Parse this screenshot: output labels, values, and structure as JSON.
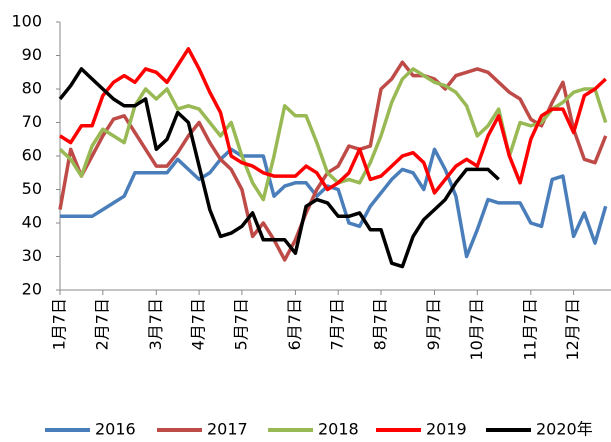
{
  "chart_data": {
    "type": "line",
    "categories": [
      "1月7日",
      null,
      null,
      null,
      "2月7日",
      null,
      null,
      null,
      null,
      "3月7日",
      null,
      null,
      null,
      "4月7日",
      null,
      null,
      null,
      "5月7日",
      null,
      null,
      null,
      null,
      "6月7日",
      null,
      null,
      null,
      "7月7日",
      null,
      null,
      null,
      "8月7日",
      null,
      null,
      null,
      null,
      "9月7日",
      null,
      null,
      null,
      "10月7日",
      null,
      null,
      null,
      null,
      "11月7日",
      null,
      null,
      null,
      "12月7日",
      null,
      null,
      null
    ],
    "series": [
      {
        "name": "2016",
        "color": "#4a7ebb",
        "values": [
          42,
          42,
          42,
          42,
          44,
          46,
          48,
          55,
          55,
          55,
          55,
          59,
          56,
          53,
          55,
          59,
          62,
          60,
          60,
          60,
          48,
          51,
          52,
          52,
          48,
          51,
          50,
          40,
          39,
          45,
          49,
          53,
          56,
          55,
          50,
          62,
          56,
          48,
          30,
          38,
          47,
          46,
          46,
          46,
          40,
          39,
          53,
          54,
          36,
          43,
          34,
          45
        ]
      },
      {
        "name": "2017",
        "color": "#be4b48",
        "values": [
          44,
          62,
          54,
          60,
          66,
          71,
          72,
          67,
          62,
          57,
          57,
          61,
          66,
          70,
          64,
          59,
          56,
          50,
          36,
          40,
          35,
          29,
          35,
          43,
          50,
          55,
          57,
          63,
          62,
          63,
          80,
          83,
          88,
          84,
          84,
          83,
          80,
          84,
          85,
          86,
          85,
          82,
          79,
          77,
          71,
          69,
          76,
          82,
          68,
          59,
          58,
          66
        ]
      },
      {
        "name": "2018",
        "color": "#98b954",
        "values": [
          62,
          59,
          54,
          63,
          68,
          66,
          64,
          75,
          80,
          77,
          80,
          74,
          75,
          74,
          70,
          66,
          70,
          60,
          52,
          47,
          60,
          75,
          72,
          72,
          64,
          55,
          52,
          53,
          52,
          58,
          66,
          76,
          83,
          86,
          84,
          82,
          81,
          79,
          75,
          66,
          69,
          74,
          60,
          70,
          69,
          70,
          74,
          76,
          79,
          80,
          80,
          70
        ]
      },
      {
        "name": "2019",
        "color": "#ff0000",
        "values": [
          66,
          64,
          69,
          69,
          78,
          82,
          84,
          82,
          86,
          85,
          82,
          87,
          92,
          86,
          79,
          73,
          60,
          58,
          57,
          55,
          54,
          54,
          54,
          57,
          55,
          50,
          52,
          55,
          62,
          53,
          54,
          57,
          60,
          61,
          58,
          49,
          53,
          57,
          59,
          57,
          66,
          72,
          60,
          52,
          65,
          72,
          74,
          74,
          67,
          78,
          80,
          83
        ]
      },
      {
        "name": "2020年",
        "color": "#000000",
        "values": [
          77,
          81,
          86,
          83,
          80,
          77,
          75,
          75,
          77,
          62,
          65,
          73,
          70,
          57,
          44,
          36,
          37,
          39,
          43,
          35,
          35,
          35,
          31,
          45,
          47,
          46,
          42,
          42,
          43,
          38,
          38,
          28,
          27,
          36,
          41,
          44,
          47,
          52,
          56,
          56,
          56,
          53,
          null,
          null,
          null,
          null,
          null,
          null,
          null,
          null,
          null,
          null
        ]
      }
    ],
    "ylim": [
      20,
      100
    ],
    "yticks": [
      20,
      30,
      40,
      50,
      60,
      70,
      80,
      90,
      100
    ],
    "grid": false,
    "legend": "bottom"
  }
}
